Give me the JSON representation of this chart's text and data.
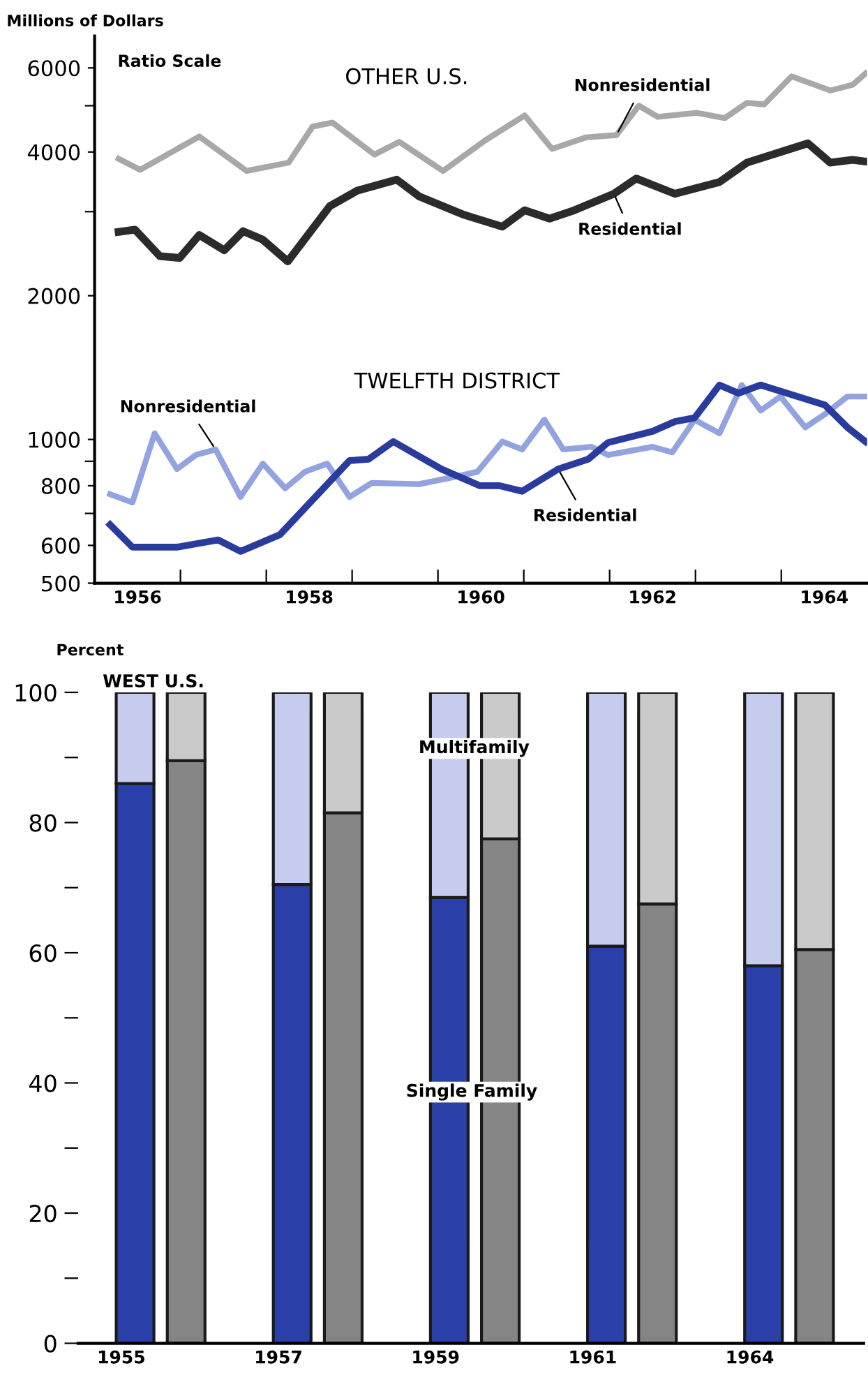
{
  "chart_data": [
    {
      "type": "line",
      "log": true,
      "ylabel": "Millions of Dollars",
      "annotations": [
        "Ratio Scale",
        "OTHER U.S.",
        "TWELFTH DISTRICT"
      ],
      "xlim": [
        1956.0,
        1965.0
      ],
      "xticks": [
        {
          "value": 1956.5,
          "label": "1956"
        },
        {
          "value": 1958.5,
          "label": "1958"
        },
        {
          "value": 1960.5,
          "label": "1960"
        },
        {
          "value": 1962.5,
          "label": "1962"
        },
        {
          "value": 1964.5,
          "label": "1964"
        },
        {
          "value": 1957,
          "label": null
        },
        {
          "value": 1958,
          "label": null
        },
        {
          "value": 1959,
          "label": null
        },
        {
          "value": 1960,
          "label": null
        },
        {
          "value": 1961,
          "label": null
        },
        {
          "value": 1962,
          "label": null
        },
        {
          "value": 1963,
          "label": null
        },
        {
          "value": 1964,
          "label": null
        }
      ],
      "ylim": [
        500,
        7000
      ],
      "yticks": [
        500,
        600,
        {
          "value": 700,
          "label": null
        },
        800,
        {
          "value": 900,
          "label": null
        },
        1000,
        2000,
        {
          "value": 3000,
          "label": null
        },
        4000,
        {
          "value": 5000,
          "label": null
        },
        6000
      ],
      "series": [
        {
          "name": "Nonresidential",
          "color": "#a8a8a8",
          "x": [
            1956.28,
            1956.53,
            1956.79,
            1957.22,
            1957.77,
            1958.26,
            1958.54,
            1958.77,
            1959.26,
            1959.55,
            1960.06,
            1960.55,
            1961.01,
            1961.33,
            1961.72,
            1962.08,
            1962.34,
            1962.56,
            1963.02,
            1963.34,
            1963.6,
            1963.8,
            1964.12,
            1964.57,
            1964.83,
            1964.98
          ],
          "values": [
            3870,
            3670,
            3900,
            4310,
            3650,
            3800,
            4520,
            4610,
            3950,
            4200,
            3650,
            4230,
            4770,
            4060,
            4290,
            4340,
            5000,
            4740,
            4830,
            4710,
            5070,
            5030,
            5760,
            5380,
            5530,
            5840
          ]
        },
        {
          "name": "Residential",
          "color": "#2b2b2b",
          "x": [
            1956.28,
            1956.47,
            1956.76,
            1956.99,
            1957.22,
            1957.51,
            1957.73,
            1957.96,
            1958.25,
            1958.74,
            1959.06,
            1959.52,
            1959.78,
            1960.29,
            1960.75,
            1961.01,
            1961.3,
            1961.59,
            1962.05,
            1962.31,
            1962.76,
            1963.28,
            1963.6,
            1964.31,
            1964.57,
            1964.83,
            1964.98
          ],
          "values": [
            2720,
            2750,
            2420,
            2400,
            2680,
            2490,
            2730,
            2620,
            2360,
            3080,
            3320,
            3500,
            3230,
            2960,
            2790,
            3020,
            2900,
            3020,
            3270,
            3520,
            3270,
            3460,
            3800,
            4170,
            3800,
            3850,
            3820
          ]
        },
        {
          "name": "Nonresidential",
          "color": "#93a3e0",
          "x": [
            1956.18,
            1956.44,
            1956.7,
            1956.96,
            1957.18,
            1957.41,
            1957.7,
            1957.96,
            1958.22,
            1958.45,
            1958.71,
            1958.97,
            1959.23,
            1959.78,
            1960.17,
            1960.46,
            1960.75,
            1960.98,
            1961.24,
            1961.46,
            1961.79,
            1961.98,
            1962.5,
            1962.73,
            1962.99,
            1963.28,
            1963.54,
            1963.76,
            1963.99,
            1964.28,
            1964.51,
            1964.77,
            1964.98
          ],
          "values": [
            768,
            738,
            1030,
            867,
            928,
            953,
            758,
            890,
            790,
            856,
            890,
            758,
            811,
            806,
            833,
            856,
            990,
            953,
            1100,
            953,
            965,
            928,
            965,
            940,
            1100,
            1030,
            1300,
            1150,
            1230,
            1060,
            1130,
            1230,
            1230
          ]
        },
        {
          "name": "Residential",
          "color": "#2a3b9e",
          "x": [
            1956.18,
            1956.44,
            1956.96,
            1957.44,
            1957.7,
            1958.16,
            1958.97,
            1959.19,
            1959.48,
            1960.04,
            1960.49,
            1960.72,
            1960.98,
            1961.4,
            1961.75,
            1961.98,
            1962.5,
            1962.76,
            1962.99,
            1963.28,
            1963.5,
            1963.76,
            1964.51,
            1964.77,
            1964.98
          ],
          "values": [
            663,
            595,
            595,
            616,
            583,
            632,
            903,
            909,
            990,
            867,
            800,
            800,
            779,
            867,
            909,
            985,
            1040,
            1090,
            1110,
            1300,
            1250,
            1300,
            1180,
            1060,
            990
          ]
        }
      ]
    },
    {
      "type": "bar",
      "stacked": true,
      "title": "WEST U.S.",
      "ylabel": "Percent",
      "categories": [
        "1955",
        null,
        "1957",
        null,
        "1959",
        null,
        "1961",
        null,
        "1964",
        null
      ],
      "ylim": [
        0,
        100
      ],
      "yticks": [
        0,
        {
          "value": 10,
          "label": null
        },
        20,
        {
          "value": 30,
          "label": null
        },
        40,
        {
          "value": 50,
          "label": null
        },
        60,
        {
          "value": 70,
          "label": null
        },
        80,
        {
          "value": 90,
          "label": null
        },
        100
      ],
      "series": [
        {
          "name": "Single Family",
          "colors": [
            "#2b3fa8",
            "#858585",
            "#2b3fa8",
            "#858585",
            "#2b3fa8",
            "#858585",
            "#2b3fa8",
            "#858585",
            "#2b3fa8",
            "#858585"
          ],
          "values": [
            86,
            89.5,
            70.5,
            81.5,
            68.5,
            77.5,
            61,
            67.5,
            58,
            60.5
          ]
        },
        {
          "name": "Multifamily",
          "colors": [
            "#c5ccee",
            "#cacaca",
            "#c5ccee",
            "#cacaca",
            "#c5ccee",
            "#cacaca",
            "#c5ccee",
            "#cacaca",
            "#c5ccee",
            "#cacaca"
          ],
          "values": [
            14,
            10.5,
            29.5,
            18.5,
            31.5,
            22.5,
            39,
            32.5,
            42,
            39.5
          ]
        }
      ]
    }
  ]
}
